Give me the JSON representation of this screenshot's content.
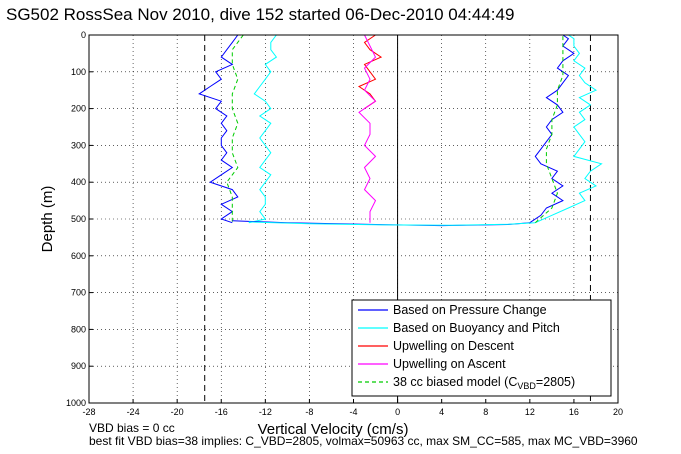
{
  "chart_data": {
    "type": "line",
    "title": "SG502 RossSea Nov 2010, dive 152 started 06-Dec-2010 04:44:49",
    "xlabel": "Vertical Velocity (cm/s)",
    "ylabel": "Depth (m)",
    "xlim": [
      -28,
      20
    ],
    "ylim": [
      1000,
      0
    ],
    "y_reversed": true,
    "x_ticks": [
      -28,
      -24,
      -20,
      -16,
      -12,
      -8,
      -4,
      0,
      4,
      8,
      12,
      16,
      20
    ],
    "y_ticks": [
      0,
      100,
      200,
      300,
      400,
      500,
      600,
      700,
      800,
      900,
      1000
    ],
    "grid": true,
    "legend_position": "bottom-right",
    "reference_lines": {
      "dashed_x": [
        -17.5,
        17.5
      ],
      "solid_x": [
        0
      ]
    },
    "legend": [
      {
        "label": "Based on Pressure Change",
        "color": "#0000ff",
        "style": "solid"
      },
      {
        "label": "Based on Buoyancy and Pitch",
        "color": "#00ffff",
        "style": "solid"
      },
      {
        "label": "Upwelling on Descent",
        "color": "#ff0000",
        "style": "solid"
      },
      {
        "label": "Upwelling on Ascent",
        "color": "#ff00ff",
        "style": "solid"
      },
      {
        "label_main": "38 cc biased model (C",
        "label_sub": "VBD",
        "label_end": "=2805)",
        "color": "#00cc00",
        "style": "dashed"
      }
    ],
    "series": [
      {
        "key": "pressure_desc",
        "color": "#0000ff",
        "depth": [
          0,
          20,
          40,
          60,
          80,
          100,
          120,
          140,
          160,
          180,
          200,
          220,
          240,
          260,
          280,
          300,
          320,
          340,
          360,
          380,
          400,
          420,
          440,
          460,
          480,
          500,
          510
        ],
        "velocity": [
          -14.5,
          -15,
          -15.5,
          -16,
          -15,
          -16.5,
          -16,
          -17,
          -18,
          -16,
          -16.5,
          -15.5,
          -16,
          -15.5,
          -16,
          -16,
          -15.5,
          -16,
          -15,
          -16,
          -17,
          -15,
          -14.5,
          -16,
          -15,
          -16,
          -15
        ]
      },
      {
        "key": "buoyancy_desc",
        "color": "#00ffff",
        "depth": [
          0,
          20,
          40,
          60,
          80,
          100,
          120,
          140,
          160,
          180,
          200,
          220,
          240,
          260,
          280,
          300,
          320,
          340,
          360,
          380,
          400,
          420,
          440,
          460,
          480,
          500,
          510
        ],
        "velocity": [
          -11,
          -11.5,
          -11.5,
          -11,
          -12,
          -11.5,
          -12,
          -12.5,
          -13,
          -12,
          -11.5,
          -12.5,
          -11.5,
          -12,
          -12.5,
          -12,
          -11.5,
          -12,
          -12.5,
          -11.5,
          -12,
          -12.5,
          -12,
          -12,
          -12.5,
          -12,
          -13.5
        ]
      },
      {
        "key": "model_desc",
        "color": "#00cc00",
        "depth": [
          0,
          40,
          80,
          120,
          160,
          200,
          240,
          280,
          320,
          360,
          400,
          440,
          480,
          510
        ],
        "velocity": [
          -14,
          -15,
          -15,
          -14.5,
          -15,
          -15,
          -14.5,
          -15,
          -15,
          -14.5,
          -15.5,
          -15,
          -15,
          -15
        ]
      },
      {
        "key": "upwelling_desc",
        "color": "#ff0000",
        "depth": [
          0,
          20,
          40,
          60,
          80,
          100,
          120,
          140,
          160,
          180,
          200
        ],
        "velocity": [
          -2,
          -3,
          -2.5,
          -1.5,
          -3,
          -2.5,
          -2,
          -3.5,
          -2.5,
          -2,
          -3
        ]
      },
      {
        "key": "upwelling_asc",
        "color": "#ff00ff",
        "depth": [
          0,
          30,
          60,
          90,
          120,
          150,
          180,
          210,
          240,
          270,
          300,
          330,
          360,
          390,
          420,
          450,
          480,
          510
        ],
        "velocity": [
          -3,
          -2.5,
          -2,
          -3,
          -2.5,
          -3,
          -2,
          -3.5,
          -2.5,
          -2.5,
          -3,
          -2,
          -3,
          -2.5,
          -3,
          -2,
          -2.5,
          -2.5
        ]
      },
      {
        "key": "pressure_asc",
        "color": "#0000ff",
        "depth": [
          510,
          490,
          470,
          450,
          430,
          410,
          390,
          370,
          350,
          330,
          310,
          290,
          270,
          250,
          230,
          210,
          190,
          170,
          150,
          130,
          110,
          90,
          70,
          50,
          30,
          10,
          0
        ],
        "velocity": [
          12,
          13,
          13.5,
          15,
          14,
          15,
          14,
          14.5,
          13,
          12.5,
          13,
          13.5,
          14,
          13.5,
          14,
          15,
          14.5,
          13.5,
          14.5,
          15,
          15.5,
          14.5,
          15,
          16,
          15,
          15.5,
          15
        ]
      },
      {
        "key": "buoyancy_asc",
        "color": "#00ffff",
        "depth": [
          510,
          490,
          470,
          450,
          430,
          410,
          390,
          370,
          350,
          330,
          310,
          290,
          270,
          250,
          230,
          210,
          190,
          170,
          150,
          130,
          110,
          90,
          70,
          50,
          30,
          10,
          0
        ],
        "velocity": [
          12.5,
          14,
          15.5,
          17,
          16.5,
          18,
          17,
          17.5,
          18.5,
          16,
          16.5,
          17,
          16.5,
          16,
          17,
          16.5,
          17.5,
          16.5,
          18,
          17,
          16.5,
          17,
          16,
          16.5,
          16,
          16,
          15.5
        ]
      },
      {
        "key": "model_asc",
        "color": "#00cc00",
        "depth": [
          510,
          470,
          430,
          390,
          350,
          310,
          270,
          230,
          190,
          150,
          110,
          70,
          30,
          0
        ],
        "velocity": [
          12.5,
          14,
          14.5,
          14,
          13.5,
          13.5,
          14,
          14,
          14.5,
          14.5,
          15,
          15,
          15,
          15
        ]
      },
      {
        "key": "bottom_turn",
        "color": "#0000ff",
        "depth": [
          505,
          510,
          515,
          518,
          515,
          510
        ],
        "velocity": [
          -15,
          -10,
          -2,
          4,
          10,
          12
        ]
      },
      {
        "key": "bottom_turn_cyan",
        "color": "#00ffff",
        "depth": [
          508,
          513,
          516,
          517,
          514,
          510
        ],
        "velocity": [
          -13.5,
          -8,
          -1,
          5,
          10,
          12.5
        ]
      },
      {
        "key": "surface_line",
        "color": "#00cc00",
        "depth": [
          0,
          0
        ],
        "velocity": [
          -28,
          20
        ]
      }
    ]
  },
  "footnotes": {
    "line1": "VBD bias = 0 cc",
    "line2": "best fit VBD bias=38 implies: C_VBD=2805, volmax=50963 cc, max SM_CC=585, max MC_VBD=3960"
  }
}
